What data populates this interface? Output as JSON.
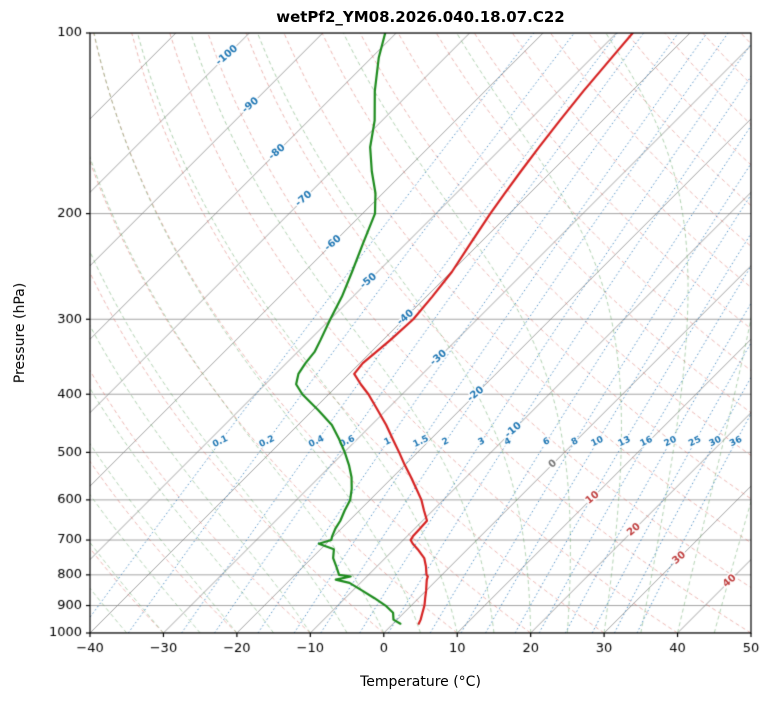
{
  "title": "wetPf2_YM08.2026.040.18.07.C22",
  "axes": {
    "x_label": "Temperature (°C)",
    "y_label": "Pressure (hPa)",
    "x_ticks": [
      -40,
      -30,
      -20,
      -10,
      0,
      10,
      20,
      30,
      40,
      50
    ],
    "y_ticks": [
      100,
      200,
      300,
      400,
      500,
      600,
      700,
      800,
      900,
      1000
    ]
  },
  "colors": {
    "temperature": "#d62222",
    "dewpoint": "#1e8c1e",
    "isotherm_grid": "#787878",
    "dry_adiabat": "#d7645a",
    "moist_adiabat": "#64a564",
    "mixing_ratio": "#2878b9",
    "label_negative": "#1f77b4",
    "label_zero": "#777777",
    "label_positive": "#c04040"
  },
  "chart_data": {
    "type": "line",
    "subtype": "skew-t-log-p",
    "title": "wetPf2_YM08.2026.040.18.07.C22",
    "xlabel": "Temperature (°C)",
    "ylabel": "Pressure (hPa)",
    "x_range": [
      -40,
      50
    ],
    "p_range": [
      100,
      1000
    ],
    "skew_deg": 45,
    "grid": true,
    "pressure": [
      965,
      950,
      925,
      900,
      875,
      850,
      825,
      815,
      805,
      800,
      775,
      750,
      725,
      710,
      700,
      690,
      670,
      650,
      625,
      600,
      575,
      550,
      525,
      500,
      475,
      450,
      425,
      400,
      385,
      370,
      355,
      340,
      325,
      300,
      275,
      250,
      225,
      200,
      185,
      170,
      155,
      140,
      125,
      110,
      100
    ],
    "series": [
      {
        "name": "temperature",
        "color": "#d62222",
        "values": [
          3.5,
          3.2,
          2.5,
          1.8,
          0.9,
          0.0,
          -1.0,
          -1.4,
          -1.7,
          -2.1,
          -3.3,
          -4.7,
          -6.8,
          -8.2,
          -9.0,
          -9.2,
          -9.3,
          -9.4,
          -11.2,
          -13.0,
          -15.2,
          -17.5,
          -20.0,
          -22.5,
          -25.2,
          -28.0,
          -31.2,
          -34.6,
          -37.0,
          -39.3,
          -39.6,
          -39.3,
          -39.0,
          -38.7,
          -39.2,
          -39.9,
          -41.2,
          -42.6,
          -43.4,
          -44.2,
          -45.0,
          -45.8,
          -46.6,
          -47.3,
          -47.8
        ]
      },
      {
        "name": "dewpoint",
        "color": "#1e8c1e",
        "values": [
          1.0,
          -0.5,
          -1.5,
          -3.5,
          -6.0,
          -8.7,
          -11.5,
          -13.8,
          -12.2,
          -14.0,
          -15.5,
          -17.1,
          -18.2,
          -21.0,
          -19.8,
          -20.2,
          -20.8,
          -21.2,
          -22.0,
          -22.7,
          -24.0,
          -25.6,
          -27.6,
          -29.9,
          -32.5,
          -35.4,
          -39.3,
          -43.6,
          -45.8,
          -46.9,
          -47.4,
          -47.7,
          -48.5,
          -50.0,
          -51.5,
          -53.5,
          -55.8,
          -58.3,
          -61.0,
          -64.5,
          -68.0,
          -71.0,
          -75.0,
          -79.0,
          -81.5
        ]
      }
    ],
    "isotherms": {
      "start": -110,
      "end": 50,
      "step": 10
    },
    "isotherm_labels": {
      "values": [
        -100,
        -90,
        -80,
        -70,
        -60,
        -50,
        -40,
        -30,
        -20,
        -10,
        0,
        10,
        20,
        30,
        40
      ],
      "pressures": [
        109,
        132,
        158,
        189,
        224,
        259,
        298,
        348,
        400,
        459,
        523,
        595,
        673,
        750,
        819
      ]
    },
    "dry_adiabats": {
      "start": -40,
      "end": 190,
      "step": 10
    },
    "moist_adiabats": {
      "start": -40,
      "end": 50,
      "step": 5
    },
    "mixing_ratio_lines": [
      0.1,
      0.2,
      0.4,
      0.6,
      1,
      1.5,
      2,
      3,
      4,
      6,
      8,
      10,
      13,
      16,
      20,
      25,
      30,
      36
    ],
    "mixing_label_pressure": 480
  }
}
